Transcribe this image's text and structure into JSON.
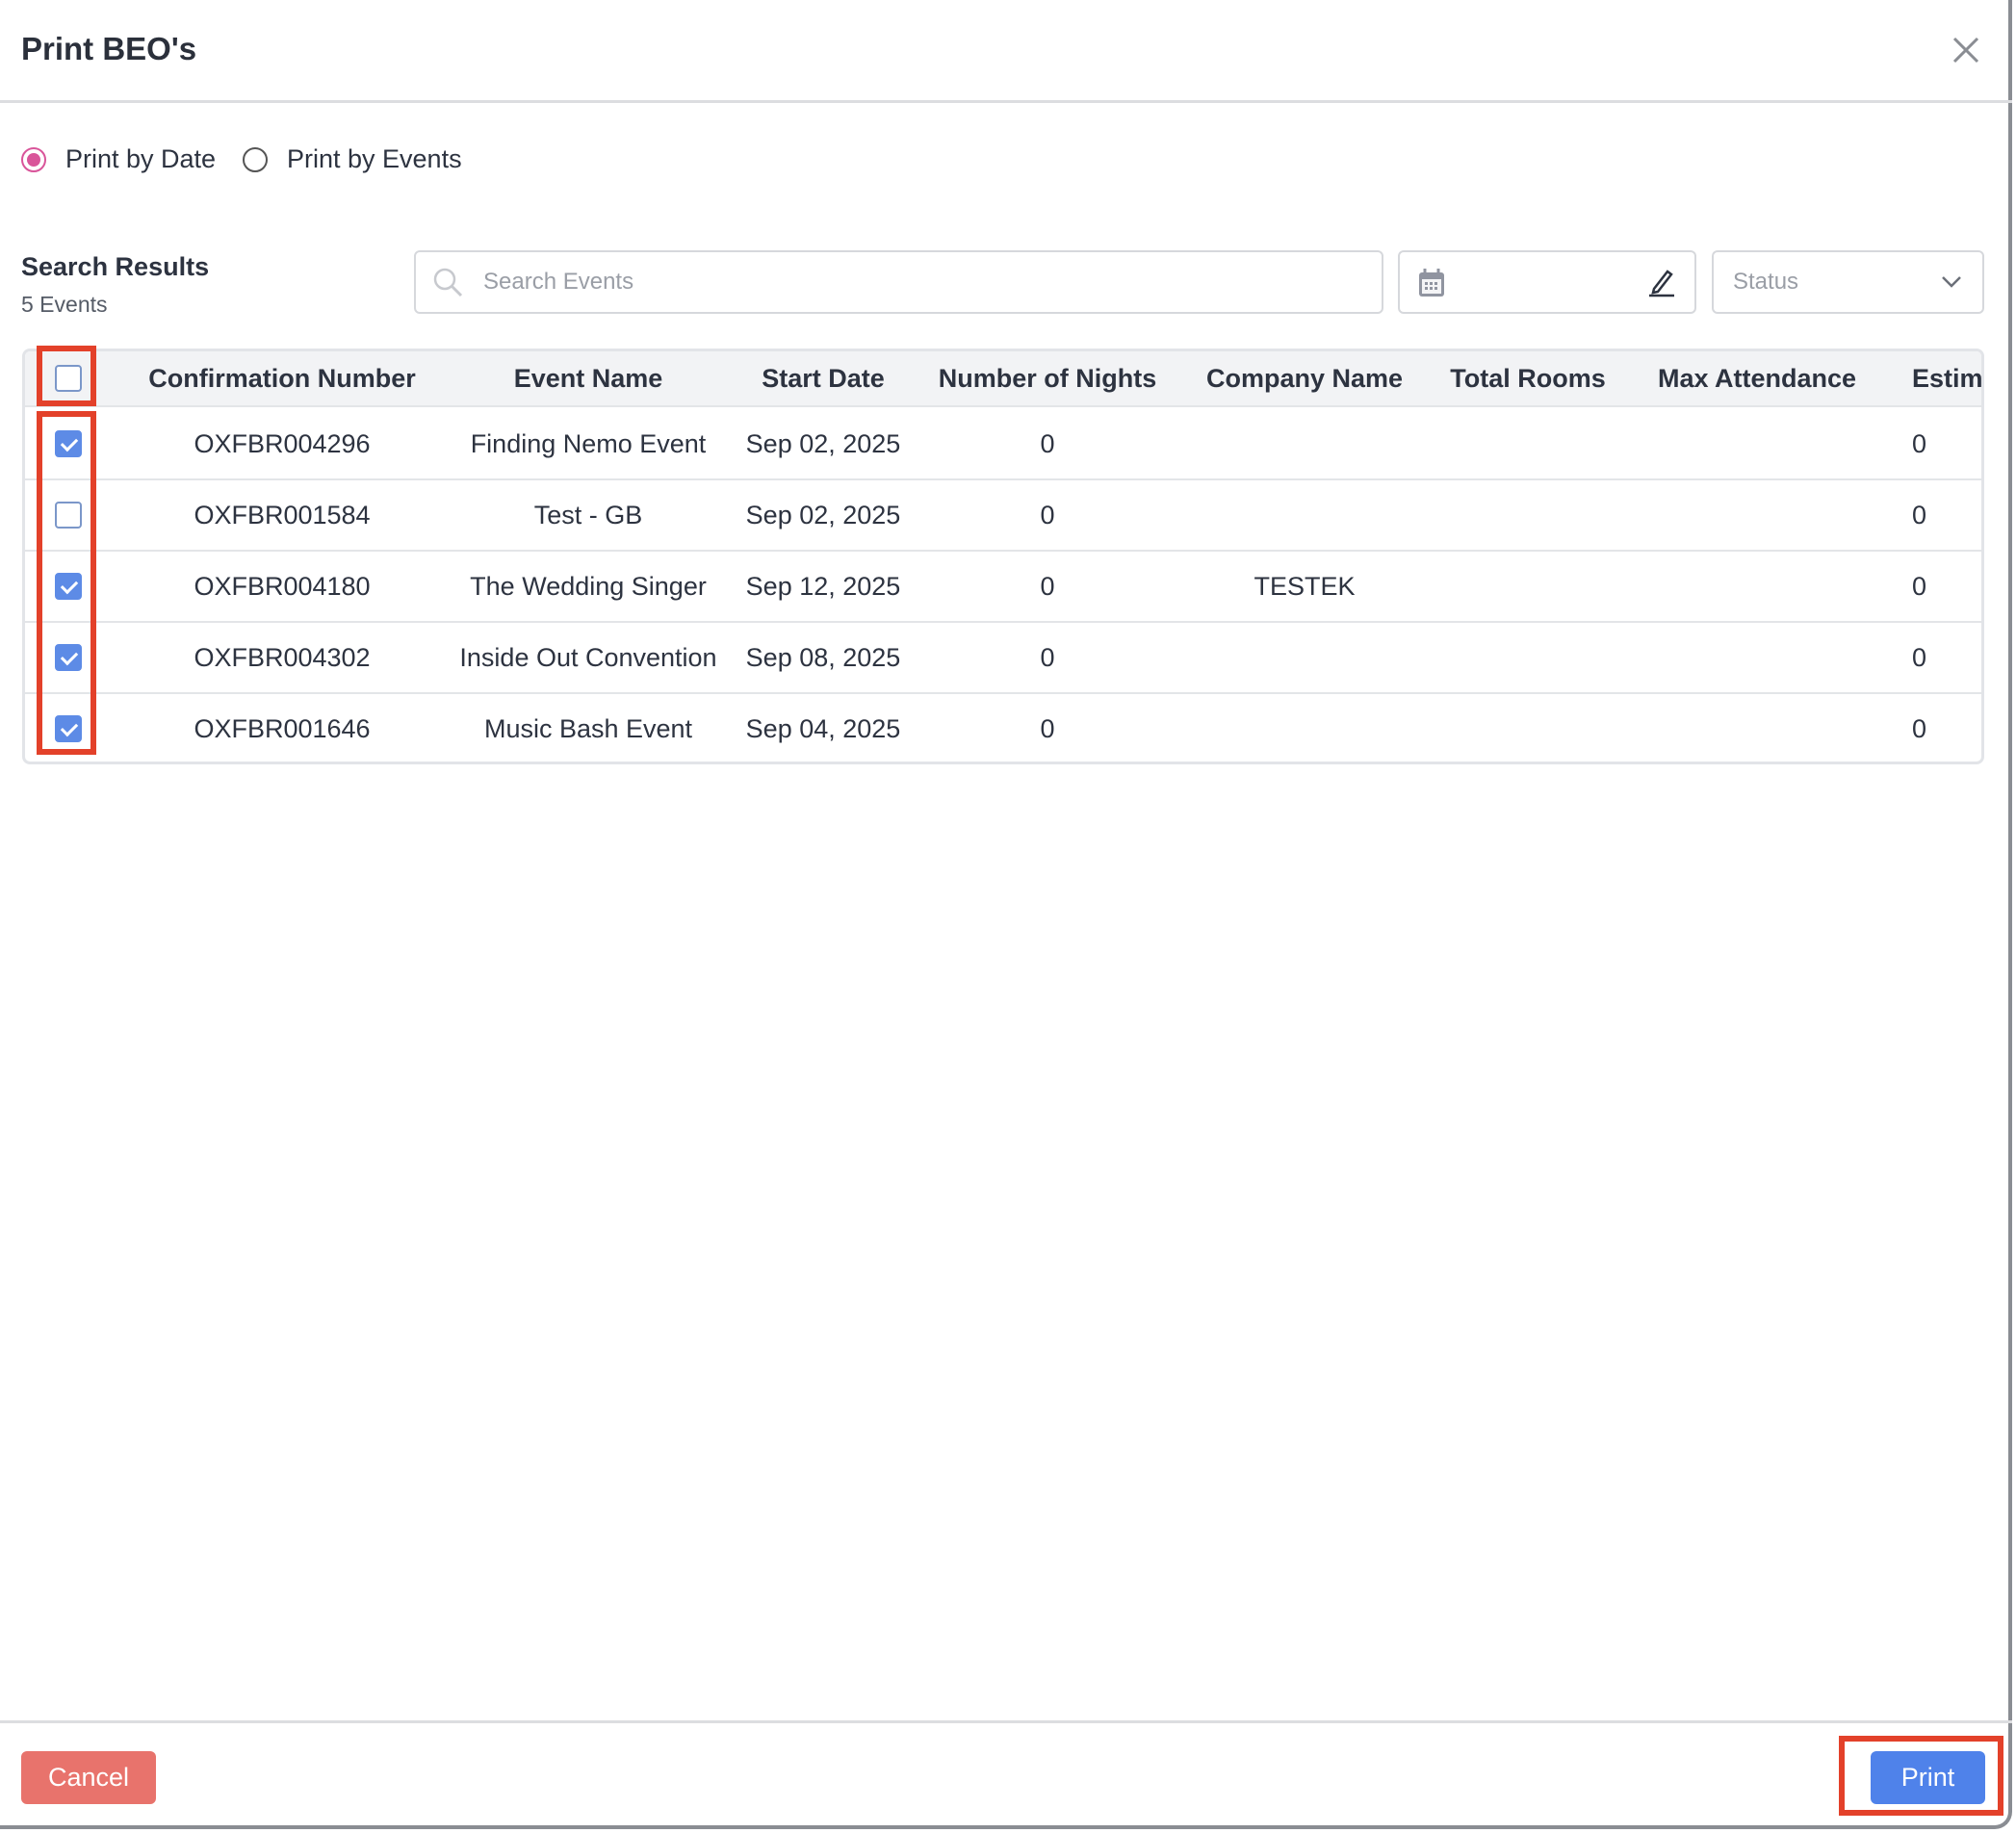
{
  "dialog": {
    "title": "Print BEO's",
    "close_icon": "close-icon"
  },
  "print_mode": {
    "options": [
      {
        "label": "Print by Date",
        "selected": true
      },
      {
        "label": "Print by Events",
        "selected": false
      }
    ],
    "accent": "#d9559a"
  },
  "search": {
    "title": "Search Results",
    "count": "5 Events",
    "placeholder": "Search Events",
    "status_placeholder": "Status"
  },
  "table": {
    "columns": [
      "Confirmation Number",
      "Event Name",
      "Start Date",
      "Number of Nights",
      "Company Name",
      "Total Rooms",
      "Max Attendance",
      "Estima"
    ],
    "select_all": false,
    "rows": [
      {
        "checked": true,
        "conf": "OXFBR004296",
        "event": "Finding Nemo Event",
        "date": "Sep 02, 2025",
        "nights": "0",
        "company": "",
        "rooms": "",
        "max": "",
        "est": "0"
      },
      {
        "checked": false,
        "conf": "OXFBR001584",
        "event": "Test - GB",
        "date": "Sep 02, 2025",
        "nights": "0",
        "company": "",
        "rooms": "",
        "max": "",
        "est": "0"
      },
      {
        "checked": true,
        "conf": "OXFBR004180",
        "event": "The Wedding Singer",
        "date": "Sep 12, 2025",
        "nights": "0",
        "company": "TESTEK",
        "rooms": "",
        "max": "",
        "est": "0"
      },
      {
        "checked": true,
        "conf": "OXFBR004302",
        "event": "Inside Out Convention",
        "date": "Sep 08, 2025",
        "nights": "0",
        "company": "",
        "rooms": "",
        "max": "",
        "est": "0"
      },
      {
        "checked": true,
        "conf": "OXFBR001646",
        "event": "Music Bash Event",
        "date": "Sep 04, 2025",
        "nights": "0",
        "company": "",
        "rooms": "",
        "max": "",
        "est": "0"
      }
    ]
  },
  "footer": {
    "cancel": "Cancel",
    "print": "Print",
    "cancel_color": "#e8736c",
    "print_color": "#4f82ea"
  }
}
